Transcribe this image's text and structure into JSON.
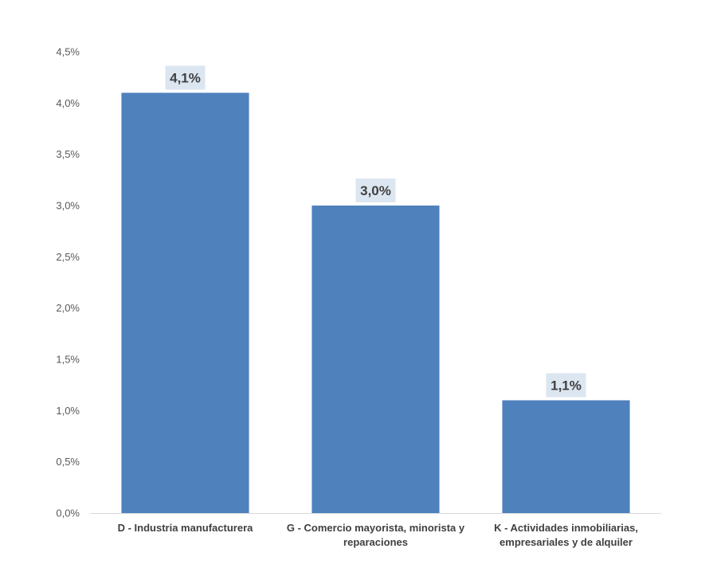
{
  "chart_data": {
    "type": "bar",
    "categories": [
      [
        "D - Industria manufacturera"
      ],
      [
        "G - Comercio mayorista, minorista y",
        "reparaciones"
      ],
      [
        "K - Actividades inmobiliarias,",
        "empresariales y de alquiler"
      ]
    ],
    "values": [
      4.1,
      3.0,
      1.1
    ],
    "data_labels": [
      "4,1%",
      "3,0%",
      "1,1%"
    ],
    "y_ticks": [
      "0,0%",
      "0,5%",
      "1,0%",
      "1,5%",
      "2,0%",
      "2,5%",
      "3,0%",
      "3,5%",
      "4,0%",
      "4,5%"
    ],
    "ylim": [
      0,
      4.5
    ],
    "title": "",
    "xlabel": "",
    "ylabel": "",
    "grid": false,
    "legend": "none",
    "colors": {
      "bar": "#4f81bd",
      "label_box": "#dce6f1",
      "axis": "#d9d9d9",
      "tick_text": "#595959",
      "label_text": "#404040"
    }
  }
}
